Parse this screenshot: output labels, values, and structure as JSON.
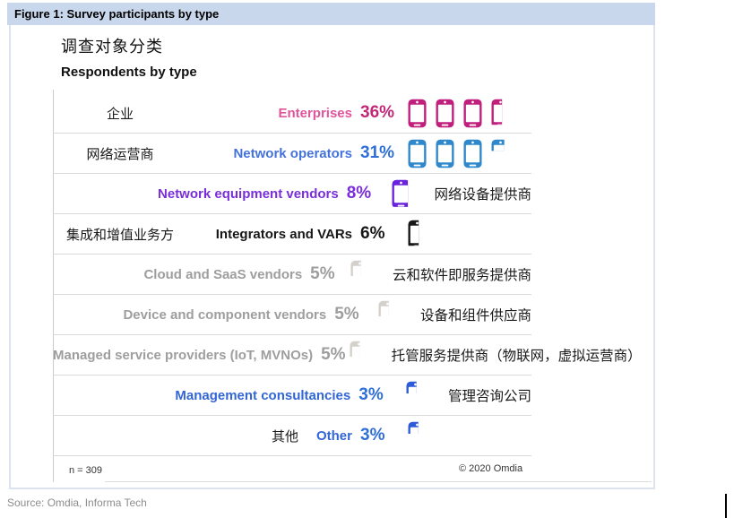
{
  "figure": {
    "title": "Figure 1: Survey participants by type"
  },
  "chart": {
    "title_cn": "调查对象分类",
    "title_en": "Respondents by type",
    "footnote": "n = 309",
    "copyright": "© 2020 Omdia"
  },
  "source": "Source: Omdia, Informa Tech",
  "colors": {
    "header_bg": "#c9d7ec",
    "themes": {
      "pink": {
        "label": "#e0549b",
        "pct": "#c22877",
        "icon": "#c01f7d"
      },
      "blue_op": {
        "label": "#4472db",
        "pct": "#2f6fd8",
        "icon": "#2f88cb"
      },
      "purple": {
        "label": "#7a2ed9",
        "pct": "#7a2ed9",
        "icon": "#6b22dc"
      },
      "black": {
        "label": "#171717",
        "pct": "#171717",
        "icon": "#171717"
      },
      "gray": {
        "label": "#9e9e9e",
        "pct": "#9e9e9e",
        "icon": "#d4d1cc"
      },
      "blue_mc": {
        "label": "#3366d5",
        "pct": "#2f6fd8",
        "icon": "#2e5cd8"
      }
    }
  },
  "rows": [
    {
      "cn_left": "企业",
      "label": "Enterprises",
      "pct": "36%",
      "theme": "pink",
      "icons_full": 3,
      "icon_partial_tenths": 6,
      "cn_right": ""
    },
    {
      "cn_left": "网络运营商",
      "label": "Network operators",
      "pct": "31%",
      "theme": "blue_op",
      "icons_full": 3,
      "icon_partial_tenths": 1,
      "cn_right": ""
    },
    {
      "cn_left": "",
      "label": "Network equipment vendors",
      "pct": "8%",
      "theme": "purple",
      "icons_full": 0,
      "icon_partial_tenths": 8,
      "cn_right": "网络设备提供商"
    },
    {
      "cn_left": "集成和增值业务方",
      "label": "Integrators and VARs",
      "pct": "6%",
      "theme": "black",
      "icons_full": 0,
      "icon_partial_tenths": 6,
      "cn_right": ""
    },
    {
      "cn_left": "",
      "label": "Cloud and SaaS vendors",
      "pct": "5%",
      "theme": "gray",
      "icons_full": 0,
      "icon_partial_tenths": 5,
      "cn_right": "云和软件即服务提供商"
    },
    {
      "cn_left": "",
      "label": "Device and component vendors",
      "pct": "5%",
      "theme": "gray",
      "icons_full": 0,
      "icon_partial_tenths": 5,
      "cn_right": "设备和组件供应商"
    },
    {
      "cn_left": "",
      "label": "Managed service providers (IoT, MVNOs)",
      "pct": "5%",
      "theme": "gray",
      "icons_full": 0,
      "icon_partial_tenths": 5,
      "cn_right": "托管服务提供商（物联网，虚拟运营商）"
    },
    {
      "cn_left": "",
      "label": "Management consultancies",
      "pct": "3%",
      "theme": "blue_mc",
      "icons_full": 0,
      "icon_partial_tenths": 3,
      "cn_right": "管理咨询公司"
    },
    {
      "cn_left": "",
      "cn_pre": "其他",
      "label": "Other",
      "pct": "3%",
      "theme": "blue_mc",
      "icons_full": 0,
      "icon_partial_tenths": 3,
      "cn_right": ""
    }
  ],
  "chart_data": {
    "type": "bar",
    "subtype": "pictogram",
    "title": "调查对象分类 / Respondents by type",
    "categories": [
      "Enterprises",
      "Network operators",
      "Network equipment vendors",
      "Integrators and VARs",
      "Cloud and SaaS vendors",
      "Device and component vendors",
      "Managed service providers (IoT, MVNOs)",
      "Management consultancies",
      "Other"
    ],
    "values": [
      36,
      31,
      8,
      6,
      5,
      5,
      5,
      3,
      3
    ],
    "unit": "%",
    "icon": "smartphone",
    "percent_per_icon": 10,
    "sample_size": 309,
    "legend_position": "none",
    "grid": "row-dividers-only",
    "category_translations_cn": [
      "企业",
      "网络运营商",
      "网络设备提供商",
      "集成和增值业务方",
      "云和软件即服务提供商",
      "设备和组件供应商",
      "托管服务提供商（物联网，虚拟运营商）",
      "管理咨询公司",
      "其他"
    ],
    "source": "Omdia, Informa Tech",
    "copyright": "© 2020 Omdia"
  }
}
